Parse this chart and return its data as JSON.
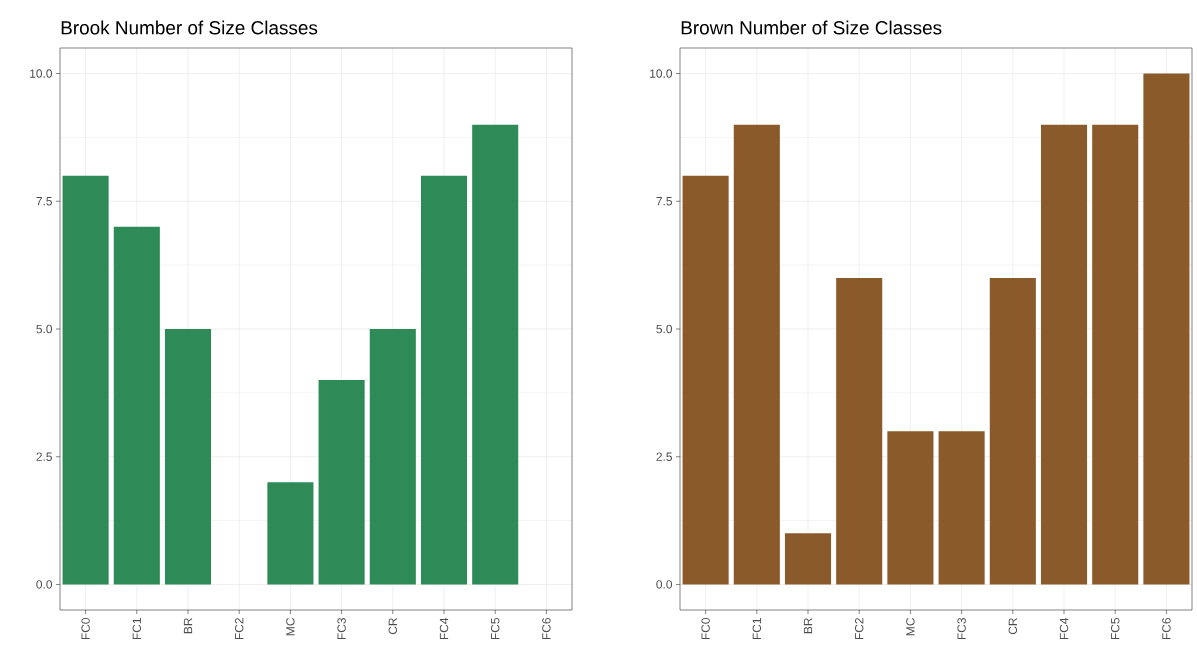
{
  "chart_data": [
    {
      "type": "bar",
      "title": "Brook Number of Size Classes",
      "categories": [
        "FC0",
        "FC1",
        "BR",
        "FC2",
        "MC",
        "FC3",
        "CR",
        "FC4",
        "FC5",
        "FC6"
      ],
      "values": [
        8,
        7,
        5,
        null,
        2,
        4,
        5,
        8,
        9,
        null
      ],
      "color": "#2e8b57",
      "ylim": [
        -0.5,
        10.5
      ],
      "yticks": [
        {
          "value": 0,
          "label": "0.0"
        },
        {
          "value": 2.5,
          "label": "2.5"
        },
        {
          "value": 5,
          "label": "5.0"
        },
        {
          "value": 7.5,
          "label": "7.5"
        },
        {
          "value": 10,
          "label": "10.0"
        }
      ],
      "grid": true
    },
    {
      "type": "bar",
      "title": "Brown Number of Size Classes",
      "categories": [
        "FC0",
        "FC1",
        "BR",
        "FC2",
        "MC",
        "FC3",
        "CR",
        "FC4",
        "FC5",
        "FC6"
      ],
      "values": [
        8,
        9,
        1,
        6,
        3,
        3,
        6,
        9,
        9,
        10
      ],
      "color": "#8b5a2b",
      "ylim": [
        -0.5,
        10.5
      ],
      "yticks": [
        {
          "value": 0,
          "label": "0.0"
        },
        {
          "value": 2.5,
          "label": "2.5"
        },
        {
          "value": 5,
          "label": "5.0"
        },
        {
          "value": 7.5,
          "label": "7.5"
        },
        {
          "value": 10,
          "label": "10.0"
        }
      ],
      "grid": true
    }
  ]
}
